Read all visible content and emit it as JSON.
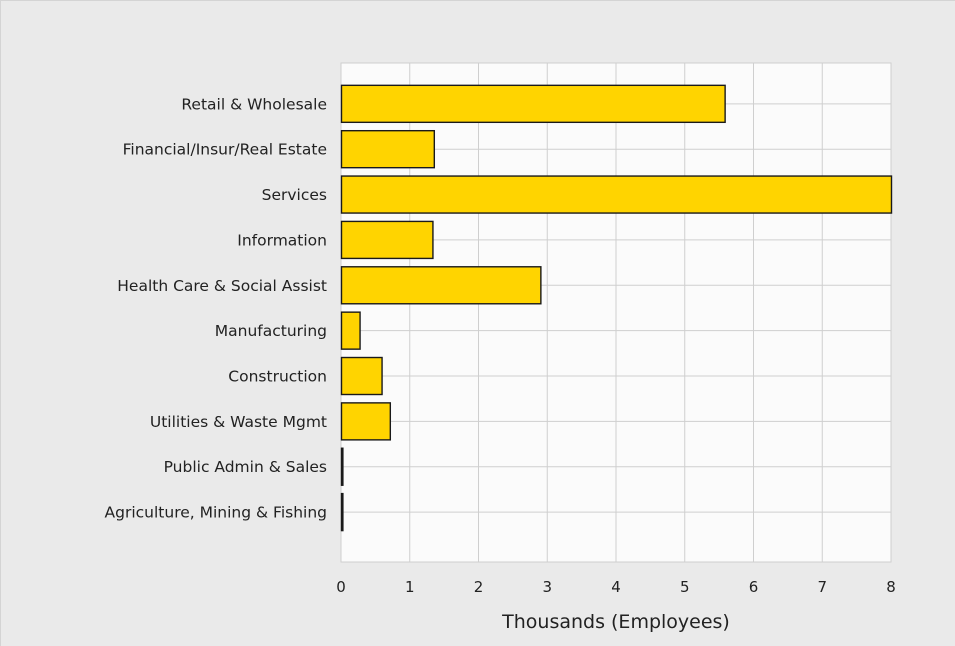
{
  "chart_data": {
    "type": "bar",
    "orientation": "horizontal",
    "title": "",
    "xlabel": "Thousands (Employees)",
    "ylabel": "",
    "xlim": [
      0,
      8
    ],
    "xticks": [
      "0",
      "1",
      "2",
      "3",
      "4",
      "5",
      "6",
      "7",
      "8"
    ],
    "grid": true,
    "legend": "none",
    "categories": [
      "Retail & Wholesale",
      "Financial/Insur/Real Estate",
      "Services",
      "Information",
      "Health Care & Social Assist",
      "Manufacturing",
      "Construction",
      "Utilities & Waste Mgmt",
      "Public Admin & Sales",
      "Agriculture, Mining & Fishing"
    ],
    "values": [
      5.58,
      1.35,
      8.0,
      1.33,
      2.9,
      0.27,
      0.59,
      0.71,
      0.02,
      0.02
    ]
  },
  "colors": {
    "bar": "#ffd400",
    "bar_stroke": "#1a1a1a",
    "plot_background": "#fbfbfb",
    "grid": "#cfcfcf",
    "frame_background": "#eaeaea"
  }
}
